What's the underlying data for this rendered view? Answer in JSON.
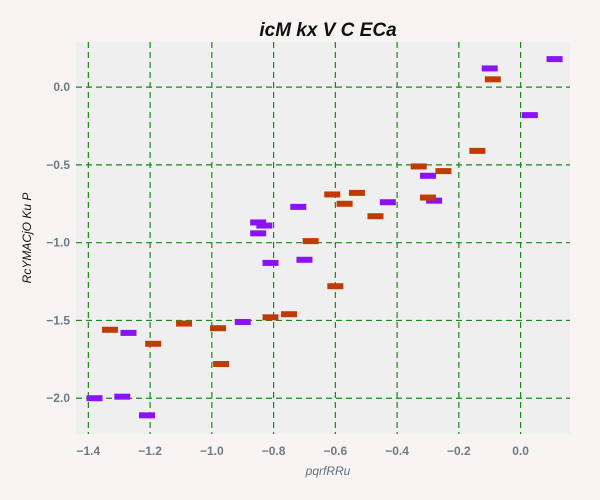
{
  "chart_data": {
    "type": "scatter",
    "title": "icM kx V  C ECa",
    "xlabel": "pqrfRRu",
    "ylabel": "RcYMACjO  Ku P",
    "xlim": [
      -1.44,
      0.16
    ],
    "ylim": [
      -2.23,
      0.29
    ],
    "x_ticks": [
      -1.4,
      -1.2,
      -1.0,
      -0.8,
      -0.6,
      -0.4,
      -0.2,
      0.0
    ],
    "x_tick_labels": [
      "−1.4",
      "−1.2",
      "−1.0",
      "−0.8",
      "−0.6",
      "−0.4",
      "−0.2",
      "0.0"
    ],
    "y_ticks": [
      0.0,
      -0.5,
      -1.0,
      -1.5,
      -2.0
    ],
    "y_tick_labels": [
      "0.0",
      "−0.5",
      "−1.0",
      "−1.5",
      "−2.0"
    ],
    "grid": true,
    "colors": {
      "purple": "#8a12f5",
      "orange": "#c03a05",
      "grid": "#168a16",
      "plot_bg": "#efefef",
      "tick_text": "#707a80",
      "axis_label_text": "#5f6f80"
    },
    "series": [
      {
        "color": "#8a12f5",
        "points": [
          {
            "x": 0.11,
            "y": 0.18
          },
          {
            "x": -0.1,
            "y": 0.12
          },
          {
            "x": 0.03,
            "y": -0.18
          },
          {
            "x": -0.3,
            "y": -0.57
          },
          {
            "x": -0.28,
            "y": -0.73
          },
          {
            "x": -0.43,
            "y": -0.74
          },
          {
            "x": -0.72,
            "y": -0.77
          },
          {
            "x": -0.85,
            "y": -0.87
          },
          {
            "x": -0.83,
            "y": -0.89
          },
          {
            "x": -0.85,
            "y": -0.94
          },
          {
            "x": -0.81,
            "y": -1.13
          },
          {
            "x": -0.7,
            "y": -1.11
          },
          {
            "x": -0.9,
            "y": -1.51
          },
          {
            "x": -1.27,
            "y": -1.58
          },
          {
            "x": -1.38,
            "y": -2.0
          },
          {
            "x": -1.29,
            "y": -1.99
          },
          {
            "x": -1.21,
            "y": -2.11
          }
        ]
      },
      {
        "color": "#c03a05",
        "points": [
          {
            "x": -0.09,
            "y": 0.05
          },
          {
            "x": -0.14,
            "y": -0.41
          },
          {
            "x": -0.33,
            "y": -0.51
          },
          {
            "x": -0.25,
            "y": -0.54
          },
          {
            "x": -0.3,
            "y": -0.71
          },
          {
            "x": -0.53,
            "y": -0.68
          },
          {
            "x": -0.61,
            "y": -0.69
          },
          {
            "x": -0.57,
            "y": -0.75
          },
          {
            "x": -0.47,
            "y": -0.83
          },
          {
            "x": -0.68,
            "y": -0.99
          },
          {
            "x": -0.6,
            "y": -1.28
          },
          {
            "x": -0.75,
            "y": -1.46
          },
          {
            "x": -0.81,
            "y": -1.48
          },
          {
            "x": -1.09,
            "y": -1.52
          },
          {
            "x": -0.98,
            "y": -1.55
          },
          {
            "x": -1.33,
            "y": -1.56
          },
          {
            "x": -1.19,
            "y": -1.65
          },
          {
            "x": -0.97,
            "y": -1.78
          }
        ]
      }
    ]
  }
}
